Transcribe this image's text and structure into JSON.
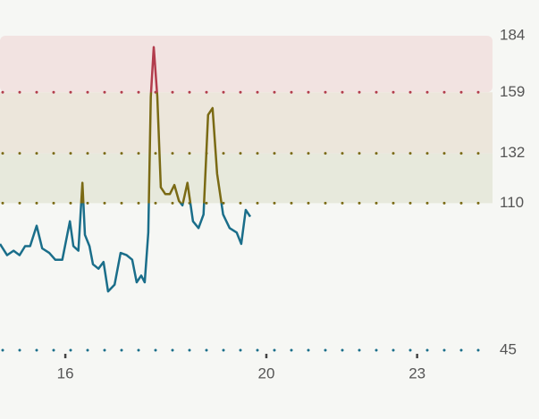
{
  "chart_data": {
    "type": "line",
    "x": [
      14.7,
      14.84,
      14.97,
      15.09,
      15.2,
      15.3,
      15.43,
      15.54,
      15.68,
      15.8,
      15.94,
      16.09,
      16.16,
      16.26,
      16.34,
      16.39,
      16.48,
      16.55,
      16.66,
      16.76,
      16.85,
      16.98,
      17.1,
      17.22,
      17.33,
      17.42,
      17.51,
      17.58,
      17.65,
      17.7,
      17.76,
      17.83,
      17.9,
      17.99,
      18.08,
      18.17,
      18.26,
      18.33,
      18.43,
      18.54,
      18.65,
      18.75,
      18.84,
      18.93,
      19.02,
      19.14,
      19.27,
      19.41,
      19.5,
      19.59,
      19.68
    ],
    "series": [
      {
        "color": "#1a6e8a",
        "values": [
          92,
          87,
          89,
          87,
          91,
          91,
          100,
          90,
          88,
          85,
          85,
          102,
          91,
          89,
          119,
          96,
          91,
          83,
          81,
          84,
          71,
          74,
          88,
          87,
          85,
          75,
          78,
          75,
          97,
          157,
          179,
          157,
          117,
          114,
          114,
          118,
          111,
          109,
          119,
          102,
          99,
          105,
          149,
          152,
          123,
          105,
          99,
          97,
          92,
          107,
          104
        ]
      }
    ],
    "thresholds": [
      {
        "above": 110,
        "color": "#7a6a14"
      },
      {
        "above": 159,
        "color": "#b23c4c"
      }
    ],
    "zones": [
      {
        "min": 110,
        "max": 132,
        "color": "#e7e9dc"
      },
      {
        "min": 132,
        "max": 159,
        "color": "#ece6db"
      },
      {
        "min": 159,
        "max": 184,
        "color": "#f2e3e1"
      }
    ],
    "reference_lines": [
      {
        "value": 45,
        "color": "#1a6e8a"
      },
      {
        "value": 110,
        "color": "#7a6a14"
      },
      {
        "value": 132,
        "color": "#7a6a14"
      },
      {
        "value": 159,
        "color": "#b23c4c"
      }
    ],
    "xlim": [
      14.7,
      24.5
    ],
    "xticks": [
      16,
      20,
      23
    ],
    "ylim": [
      45,
      184
    ],
    "yticks": [
      45,
      110,
      132,
      159,
      184
    ]
  }
}
